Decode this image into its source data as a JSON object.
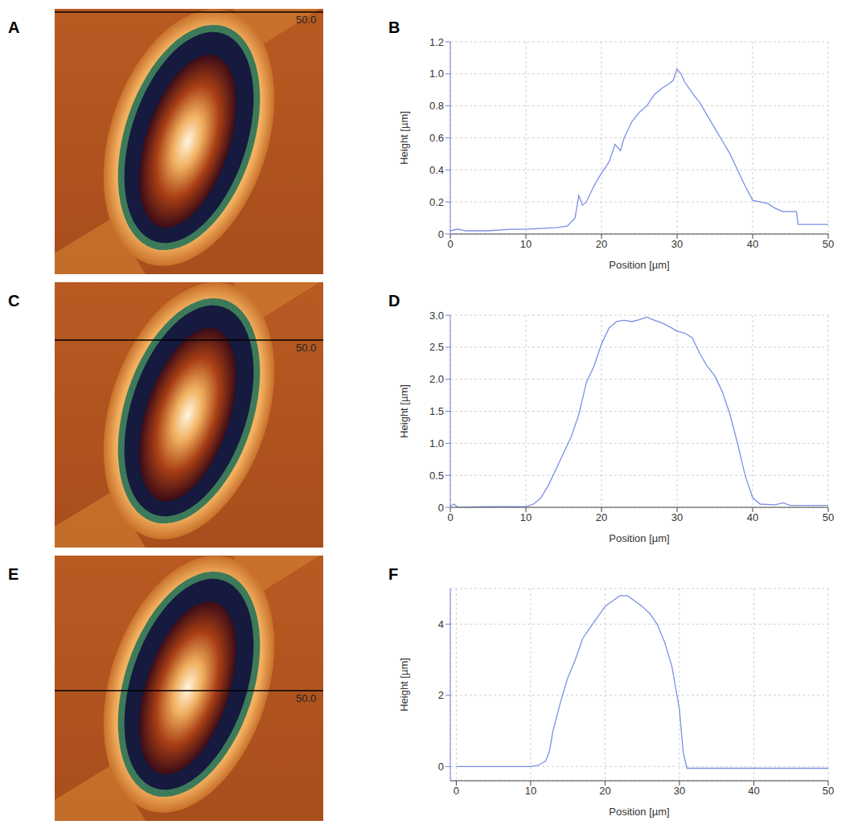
{
  "panels": [
    {
      "letter": "A",
      "scan_label": "50.0"
    },
    {
      "letter": "C",
      "scan_label": "50.0"
    },
    {
      "letter": "E",
      "scan_label": "50.0"
    }
  ],
  "chart_data": [
    {
      "panel": "B",
      "type": "line",
      "x_label": "Position [µm]",
      "y_label": "Height [µm]",
      "color": "#7b8fe6",
      "grid": true,
      "xlim": [
        0,
        50
      ],
      "xticks": [
        0,
        10,
        20,
        30,
        40,
        50
      ],
      "ylim": [
        0,
        1.2
      ],
      "yticks": [
        0,
        0.2,
        0.4,
        0.6,
        0.8,
        {
          "value": 1,
          "label": "1.0"
        },
        1.2
      ],
      "x": [
        0,
        1,
        2,
        5,
        8,
        10,
        12,
        14,
        15.5,
        16.5,
        17,
        17.5,
        18,
        19,
        20,
        21,
        21.8,
        22.5,
        23,
        24,
        25,
        26,
        27,
        28,
        29,
        29.5,
        30,
        30.5,
        31,
        32,
        33,
        34,
        35,
        36,
        37,
        38,
        39,
        40,
        41,
        42,
        43,
        44,
        45,
        45.8,
        46,
        48,
        50
      ],
      "values": [
        0.02,
        0.03,
        0.02,
        0.02,
        0.03,
        0.03,
        0.035,
        0.04,
        0.05,
        0.1,
        0.24,
        0.18,
        0.2,
        0.3,
        0.38,
        0.45,
        0.56,
        0.52,
        0.6,
        0.7,
        0.76,
        0.8,
        0.87,
        0.91,
        0.94,
        0.96,
        1.03,
        1.0,
        0.95,
        0.88,
        0.82,
        0.74,
        0.66,
        0.58,
        0.5,
        0.4,
        0.3,
        0.21,
        0.2,
        0.19,
        0.16,
        0.14,
        0.14,
        0.14,
        0.06,
        0.06,
        0.06
      ]
    },
    {
      "panel": "D",
      "type": "line",
      "x_label": "Position [µm]",
      "y_label": "Height [µm]",
      "color": "#7b8fe6",
      "grid": true,
      "xlim": [
        0,
        50
      ],
      "xticks": [
        0,
        10,
        20,
        30,
        40,
        50
      ],
      "ylim": [
        0,
        3
      ],
      "yticks": [
        0,
        0.5,
        {
          "value": 1,
          "label": "1.0"
        },
        1.5,
        {
          "value": 2,
          "label": "2.0"
        },
        2.5,
        {
          "value": 3,
          "label": "3.0"
        }
      ],
      "x": [
        0,
        0.5,
        1,
        5,
        10,
        11,
        12,
        13,
        14,
        15,
        16,
        17,
        18,
        19,
        20,
        21,
        22,
        23,
        24,
        25,
        26,
        27,
        28,
        29,
        30,
        31,
        32,
        33,
        34,
        35,
        36,
        37,
        38,
        39,
        40,
        41,
        43,
        44,
        45,
        50
      ],
      "values": [
        0.02,
        0.05,
        0,
        0.01,
        0.01,
        0.05,
        0.15,
        0.35,
        0.6,
        0.85,
        1.1,
        1.45,
        1.95,
        2.2,
        2.55,
        2.8,
        2.9,
        2.92,
        2.9,
        2.93,
        2.97,
        2.92,
        2.88,
        2.82,
        2.75,
        2.72,
        2.65,
        2.4,
        2.2,
        2.05,
        1.8,
        1.45,
        1.0,
        0.5,
        0.15,
        0.05,
        0.04,
        0.07,
        0.03,
        0.03
      ]
    },
    {
      "panel": "F",
      "type": "line",
      "x_label": "Position [µm]",
      "y_label": "Height [µm]",
      "color": "#7b8fe6",
      "grid": true,
      "xlim": [
        -0.8,
        50
      ],
      "xticks": [
        0,
        10,
        20,
        30,
        40,
        50
      ],
      "ylim": [
        -0.4,
        5
      ],
      "yticks": [
        0,
        2,
        4
      ],
      "x": [
        0,
        5,
        10,
        11,
        12,
        12.5,
        13,
        14,
        15,
        16,
        17,
        18,
        19,
        20,
        21,
        22,
        23,
        24,
        25,
        26,
        27,
        28,
        29,
        30,
        30.5,
        31,
        35,
        40,
        50
      ],
      "values": [
        0,
        0,
        0,
        0.03,
        0.15,
        0.4,
        1.0,
        1.8,
        2.5,
        3.0,
        3.6,
        3.9,
        4.2,
        4.5,
        4.65,
        4.8,
        4.8,
        4.65,
        4.5,
        4.3,
        4.0,
        3.5,
        2.8,
        1.6,
        0.4,
        -0.05,
        -0.05,
        -0.05,
        -0.05
      ]
    }
  ]
}
